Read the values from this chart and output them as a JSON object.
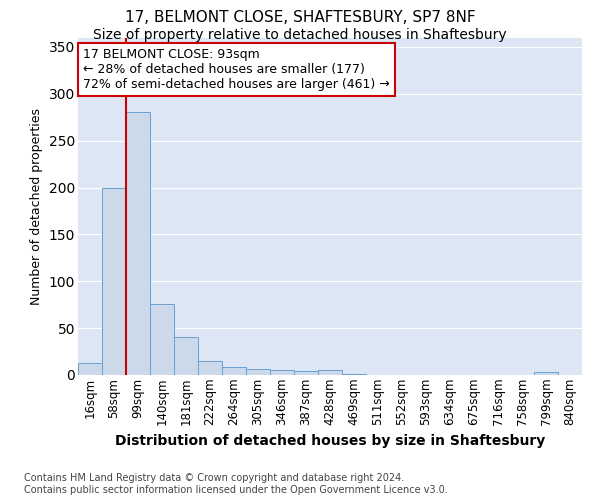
{
  "title1": "17, BELMONT CLOSE, SHAFTESBURY, SP7 8NF",
  "title2": "Size of property relative to detached houses in Shaftesbury",
  "xlabel": "Distribution of detached houses by size in Shaftesbury",
  "ylabel": "Number of detached properties",
  "footnote": "Contains HM Land Registry data © Crown copyright and database right 2024.\nContains public sector information licensed under the Open Government Licence v3.0.",
  "bin_labels": [
    "16sqm",
    "58sqm",
    "99sqm",
    "140sqm",
    "181sqm",
    "222sqm",
    "264sqm",
    "305sqm",
    "346sqm",
    "387sqm",
    "428sqm",
    "469sqm",
    "511sqm",
    "552sqm",
    "593sqm",
    "634sqm",
    "675sqm",
    "716sqm",
    "758sqm",
    "799sqm",
    "840sqm"
  ],
  "bar_heights": [
    13,
    200,
    281,
    76,
    41,
    15,
    9,
    6,
    5,
    4,
    5,
    1,
    0,
    0,
    0,
    0,
    0,
    0,
    0,
    3,
    0
  ],
  "bar_color": "#ccd9ea",
  "bar_edge_color": "#6aa0cf",
  "ylim": [
    0,
    360
  ],
  "yticks": [
    0,
    50,
    100,
    150,
    200,
    250,
    300,
    350
  ],
  "red_line_x": 1.5,
  "annotation_text": "17 BELMONT CLOSE: 93sqm\n← 28% of detached houses are smaller (177)\n72% of semi-detached houses are larger (461) →",
  "annotation_box_color": "#ffffff",
  "annotation_box_edge": "#cc0000",
  "bg_color": "#ffffff",
  "plot_bg_color": "#dce6f5",
  "grid_color": "#ffffff",
  "title1_fontsize": 11,
  "title2_fontsize": 10,
  "xlabel_fontsize": 10,
  "ylabel_fontsize": 9,
  "annot_fontsize": 9,
  "tick_fontsize": 8.5,
  "footnote_fontsize": 7
}
